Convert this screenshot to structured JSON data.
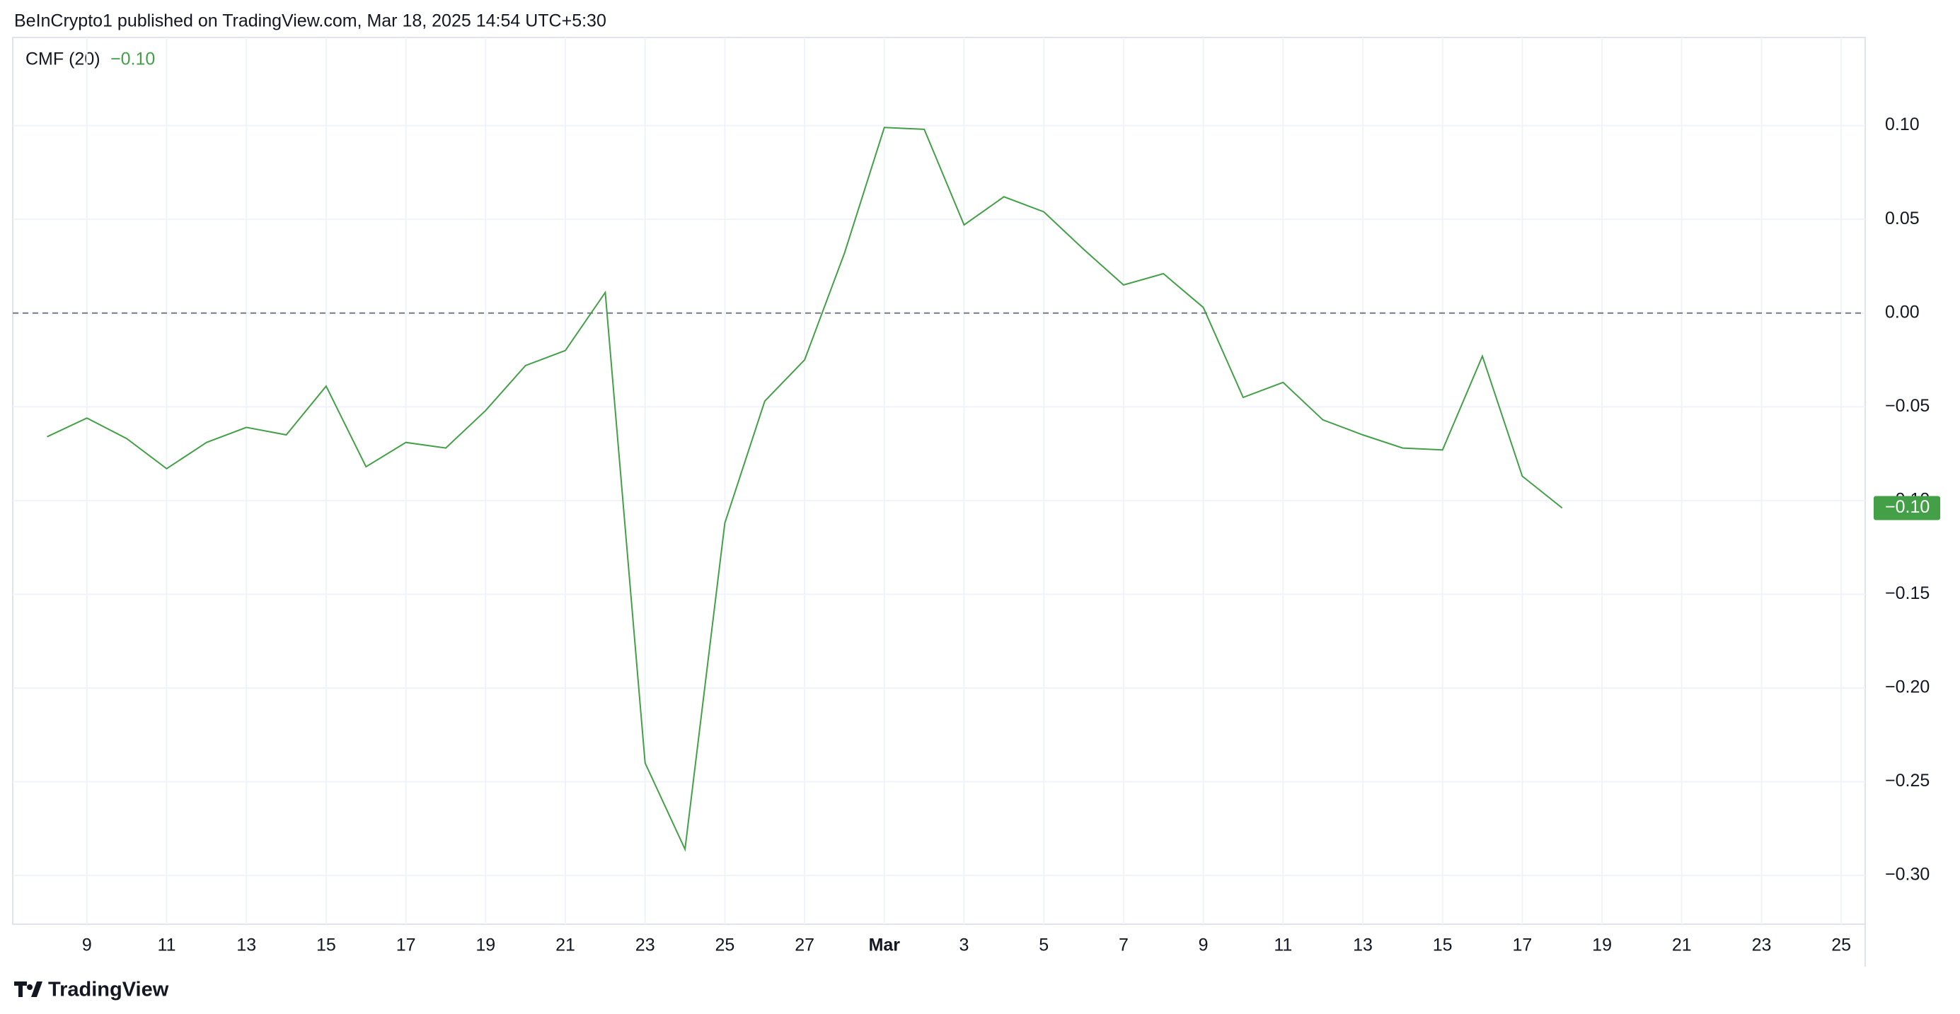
{
  "header": "BeInCrypto1 published on TradingView.com, Mar 18, 2025 14:54 UTC+5:30",
  "footer": "TradingView",
  "chart_data": {
    "type": "line",
    "legend_label": "CMF (20)",
    "last_value_label": "−0.10",
    "x": [
      0,
      1,
      2,
      3,
      4,
      5,
      6,
      7,
      8,
      9,
      10,
      11,
      12,
      13,
      14,
      15,
      16,
      17,
      18,
      19,
      20,
      21,
      22,
      23,
      24,
      25,
      26,
      27,
      28,
      29,
      30,
      31,
      32,
      33,
      34,
      35,
      36,
      37,
      38
    ],
    "series": [
      {
        "name": "CMF (20)",
        "color": "#43a047",
        "values": [
          -0.066,
          -0.056,
          -0.067,
          -0.083,
          -0.069,
          -0.061,
          -0.065,
          -0.039,
          -0.082,
          -0.069,
          -0.072,
          -0.052,
          -0.028,
          -0.02,
          0.011,
          -0.24,
          -0.286,
          -0.112,
          -0.047,
          -0.025,
          0.032,
          0.099,
          0.098,
          0.047,
          0.062,
          0.054,
          0.034,
          0.015,
          0.021,
          0.003,
          -0.045,
          -0.037,
          -0.057,
          -0.065,
          -0.072,
          -0.073,
          -0.023,
          -0.087,
          -0.104
        ]
      }
    ],
    "xlim": [
      -0.86,
      45.6
    ],
    "xticks": [
      {
        "value": 1,
        "label": "9"
      },
      {
        "value": 3,
        "label": "11"
      },
      {
        "value": 5,
        "label": "13"
      },
      {
        "value": 7,
        "label": "15"
      },
      {
        "value": 9,
        "label": "17"
      },
      {
        "value": 11,
        "label": "19"
      },
      {
        "value": 13,
        "label": "21"
      },
      {
        "value": 15,
        "label": "23"
      },
      {
        "value": 17,
        "label": "25"
      },
      {
        "value": 19,
        "label": "27"
      },
      {
        "value": 21,
        "label": "Mar"
      },
      {
        "value": 23,
        "label": "3"
      },
      {
        "value": 25,
        "label": "5"
      },
      {
        "value": 27,
        "label": "7"
      },
      {
        "value": 29,
        "label": "9"
      },
      {
        "value": 31,
        "label": "11"
      },
      {
        "value": 33,
        "label": "13"
      },
      {
        "value": 35,
        "label": "15"
      },
      {
        "value": 37,
        "label": "17"
      },
      {
        "value": 39,
        "label": "19"
      },
      {
        "value": 41,
        "label": "21"
      },
      {
        "value": 43,
        "label": "23"
      },
      {
        "value": 45,
        "label": "25"
      }
    ],
    "ylim": [
      -0.326,
      0.147
    ],
    "yticks": [
      {
        "value": 0.1,
        "label": "0.10"
      },
      {
        "value": 0.05,
        "label": "0.05"
      },
      {
        "value": 0,
        "label": "0.00"
      },
      {
        "value": -0.05,
        "label": "−0.05"
      },
      {
        "value": -0.1,
        "label": "−0.10"
      },
      {
        "value": -0.15,
        "label": "−0.15"
      },
      {
        "value": -0.2,
        "label": "−0.20"
      },
      {
        "value": -0.25,
        "label": "−0.25"
      },
      {
        "value": -0.3,
        "label": "−0.30"
      }
    ],
    "zero_line": 0,
    "grid": true
  }
}
